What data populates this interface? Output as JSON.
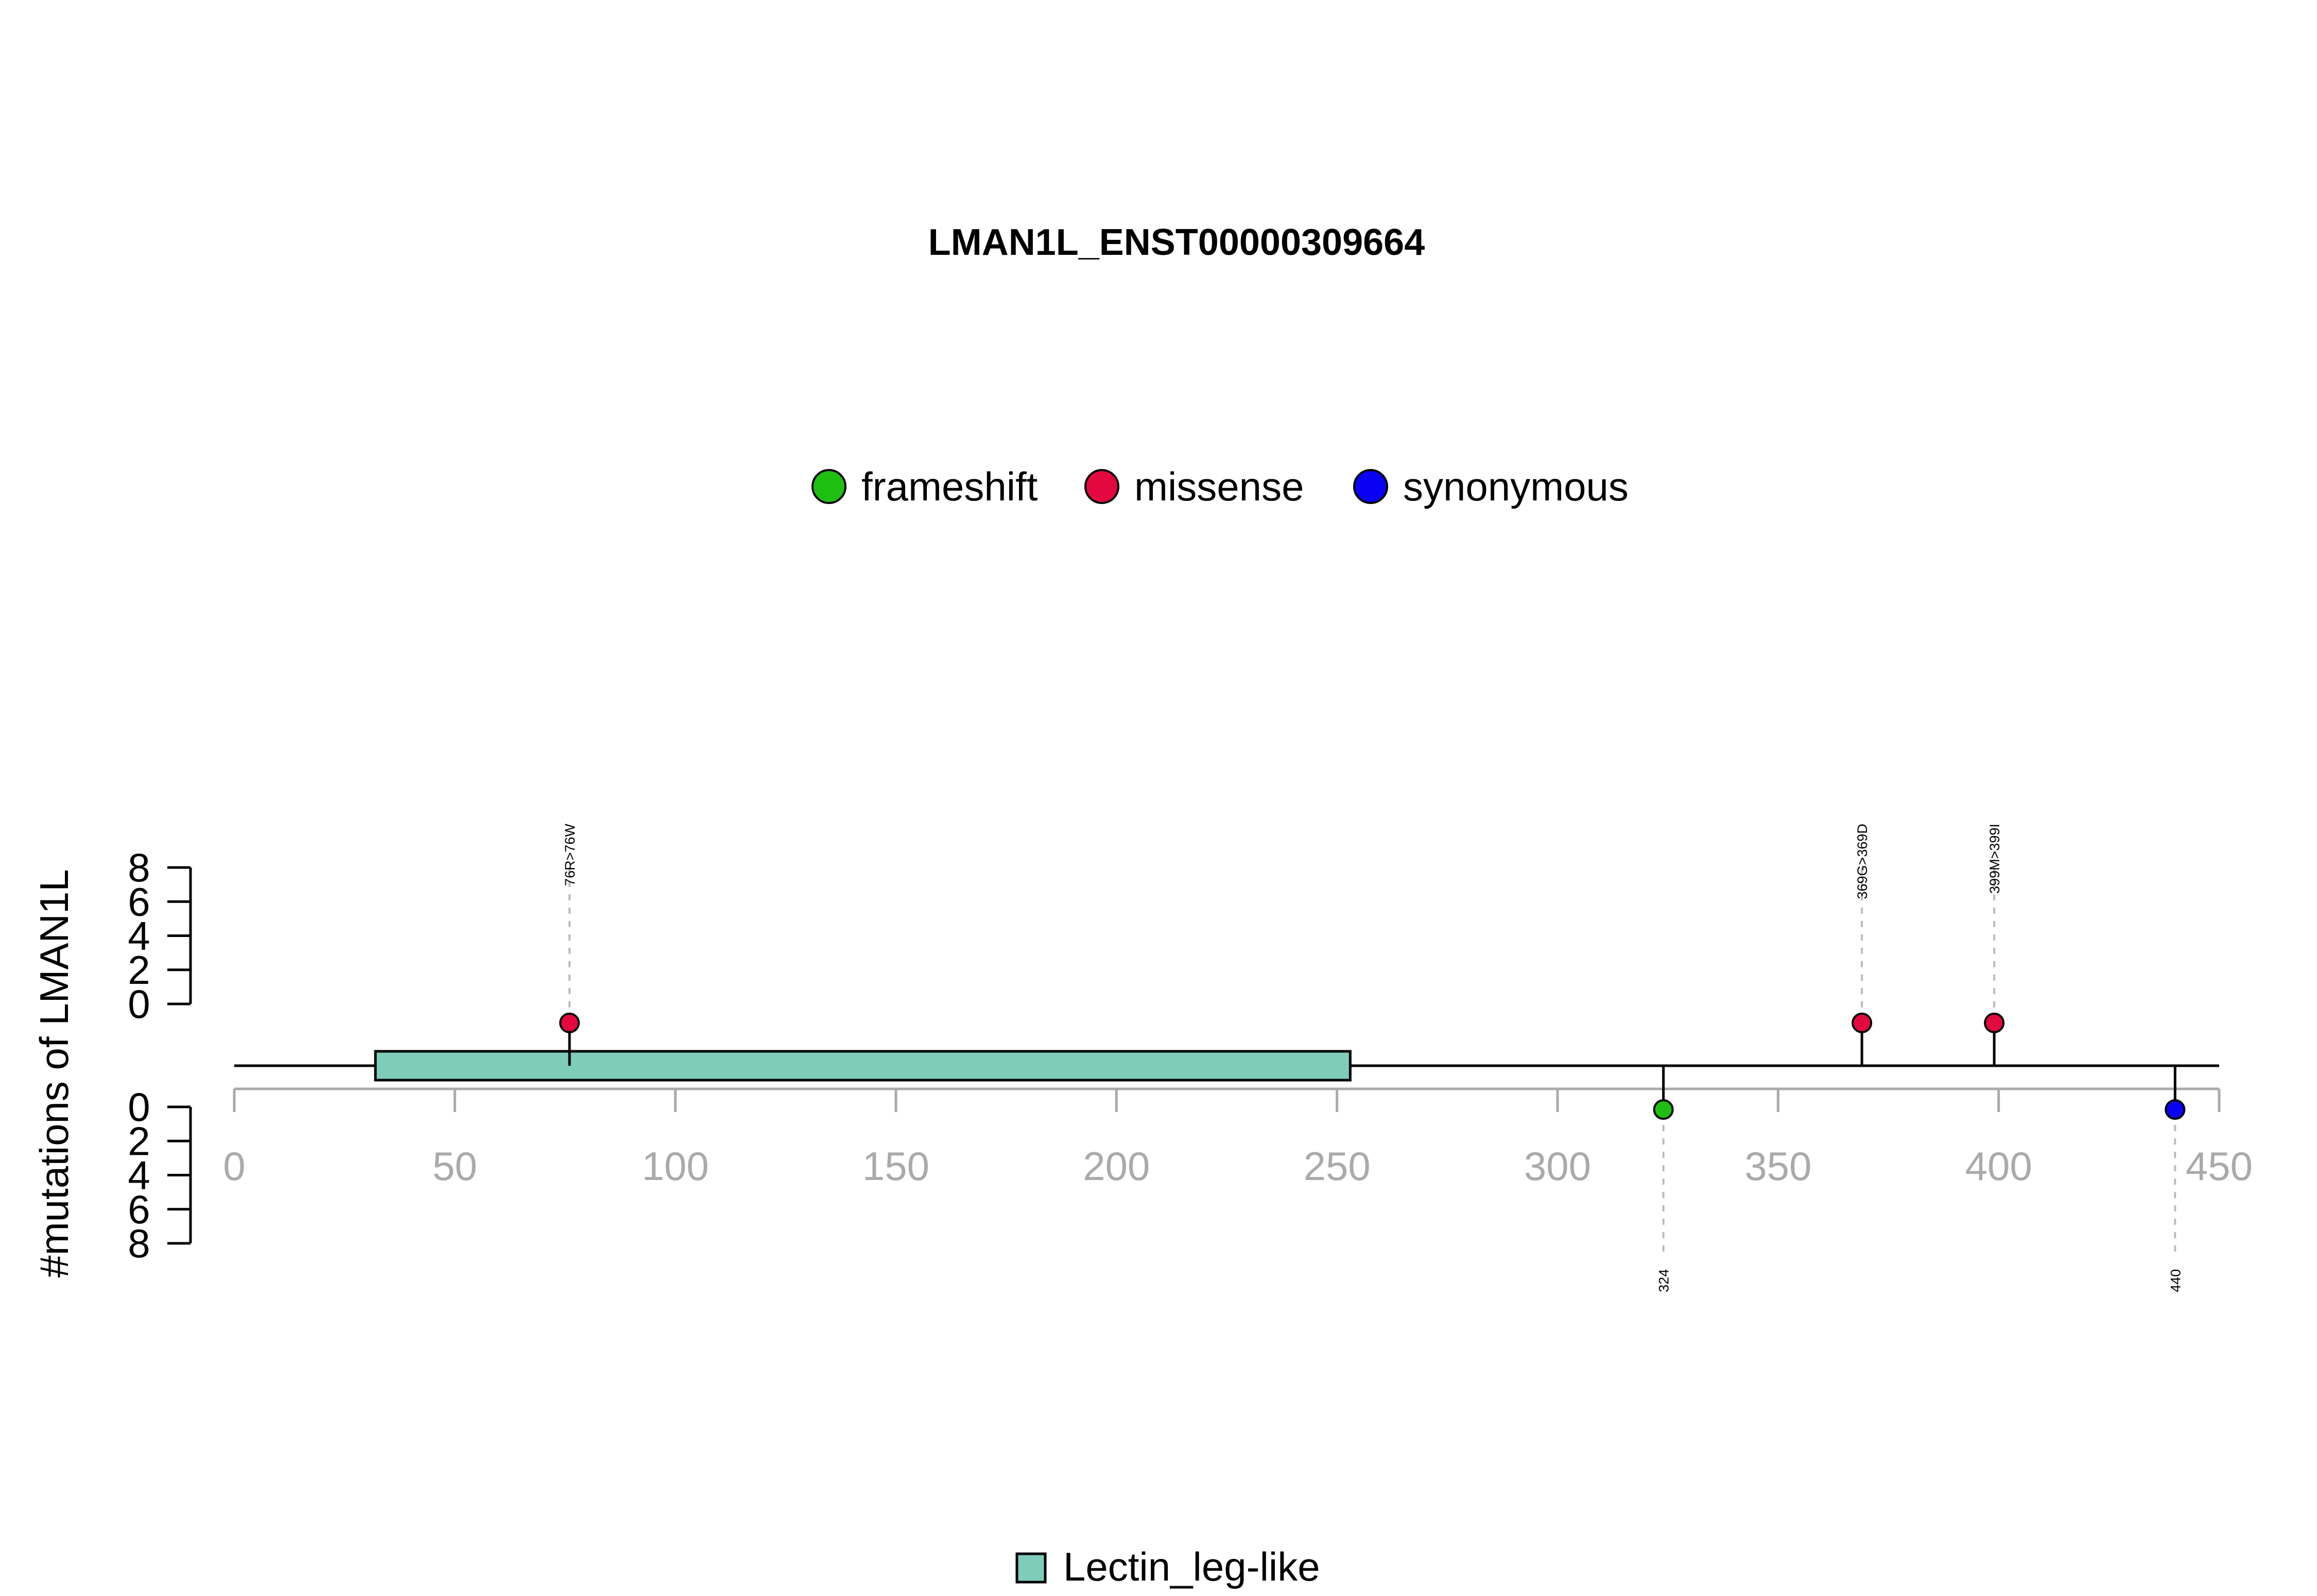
{
  "chart_data": {
    "type": "lollipop",
    "title": "LMAN1L_ENST00000309664",
    "ylabel": "#mutations of LMAN1L",
    "xlim": [
      0,
      450
    ],
    "x_ticks": [
      "0",
      "50",
      "100",
      "150",
      "200",
      "250",
      "300",
      "350",
      "400",
      "450"
    ],
    "y_ticks": [
      "0",
      "2",
      "4",
      "6",
      "8"
    ],
    "ylim": [
      0,
      8
    ],
    "mutation_types": [
      {
        "name": "frameshift",
        "color": "#1fbf12"
      },
      {
        "name": "missense",
        "color": "#e3083f"
      },
      {
        "name": "synonymous",
        "color": "#0a00f5"
      }
    ],
    "mutations": [
      {
        "position": 76,
        "count": 1,
        "type": "missense",
        "label": "76R>76W",
        "side": "top"
      },
      {
        "position": 369,
        "count": 1,
        "type": "missense",
        "label": "369G>369D",
        "side": "top"
      },
      {
        "position": 399,
        "count": 1,
        "type": "missense",
        "label": "399M>399I",
        "side": "top"
      },
      {
        "position": 324,
        "count": 1,
        "type": "frameshift",
        "label": "324",
        "side": "bottom"
      },
      {
        "position": 440,
        "count": 1,
        "type": "synonymous",
        "label": "440",
        "side": "bottom"
      }
    ],
    "domains": [
      {
        "name": "Lectin_leg-like",
        "start": 32,
        "end": 253,
        "color": "#7ecdbb"
      }
    ],
    "protein_length": 450
  }
}
